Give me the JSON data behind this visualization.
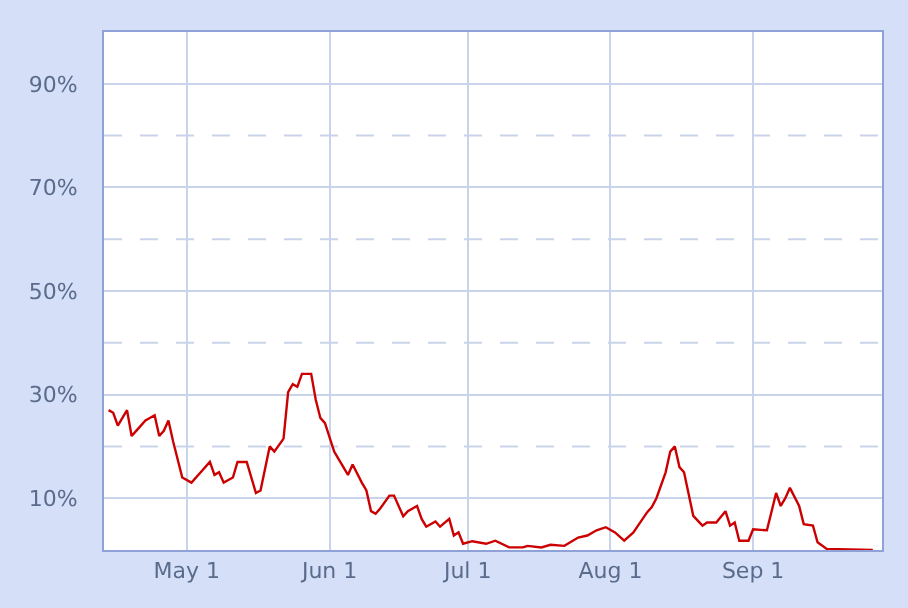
{
  "chart_data": {
    "type": "line",
    "grid": true,
    "line_style": "solid",
    "xlim": [
      "--04-13",
      "--09-29"
    ],
    "xticks": [
      {
        "value": "--05-01",
        "label": "May 1"
      },
      {
        "value": "--06-01",
        "label": "Jun 1"
      },
      {
        "value": "--07-01",
        "label": "Jul 1"
      },
      {
        "value": "--08-01",
        "label": "Aug 1"
      },
      {
        "value": "--09-01",
        "label": "Sep 1"
      }
    ],
    "ylim": [
      0,
      100
    ],
    "yticks": [
      {
        "value": 10,
        "label": "10%"
      },
      {
        "value": 20,
        "label": null
      },
      {
        "value": 30,
        "label": "30%"
      },
      {
        "value": 40,
        "label": null
      },
      {
        "value": 50,
        "label": "50%"
      },
      {
        "value": 60,
        "label": null
      },
      {
        "value": 70,
        "label": "70%"
      },
      {
        "value": 80,
        "label": null
      },
      {
        "value": 90,
        "label": "90%"
      }
    ],
    "x": [
      "--04-14",
      "--04-15",
      "--04-16",
      "--04-18",
      "--04-19",
      "--04-20",
      "--04-22",
      "--04-24",
      "--04-25",
      "--04-26",
      "--04-27",
      "--04-28",
      "--04-30",
      "--05-02",
      "--05-04",
      "--05-06",
      "--05-07",
      "--05-08",
      "--05-09",
      "--05-11",
      "--05-12",
      "--05-14",
      "--05-16",
      "--05-17",
      "--05-19",
      "--05-20",
      "--05-22",
      "--05-23",
      "--05-24",
      "--05-25",
      "--05-26",
      "--05-28",
      "--05-29",
      "--05-30",
      "--05-31",
      "--06-02",
      "--06-03",
      "--06-05",
      "--06-06",
      "--06-08",
      "--06-09",
      "--06-10",
      "--06-11",
      "--06-12",
      "--06-14",
      "--06-15",
      "--06-17",
      "--06-18",
      "--06-20",
      "--06-21",
      "--06-22",
      "--06-24",
      "--06-25",
      "--06-27",
      "--06-28",
      "--06-29",
      "--06-30",
      "--07-02",
      "--07-05",
      "--07-07",
      "--07-10",
      "--07-13",
      "--07-14",
      "--07-17",
      "--07-19",
      "--07-22",
      "--07-25",
      "--07-27",
      "--07-29",
      "--07-31",
      "--08-02",
      "--08-04",
      "--08-06",
      "--08-07",
      "--08-09",
      "--08-10",
      "--08-11",
      "--08-13",
      "--08-14",
      "--08-15",
      "--08-16",
      "--08-17",
      "--08-19",
      "--08-21",
      "--08-22",
      "--08-24",
      "--08-26",
      "--08-27",
      "--08-28",
      "--08-29",
      "--08-31",
      "--09-01",
      "--09-04",
      "--09-06",
      "--09-07",
      "--09-08",
      "--09-09",
      "--09-11",
      "--09-12",
      "--09-14",
      "--09-15",
      "--09-17",
      "--09-27"
    ],
    "series": [
      {
        "color": "#cc0000",
        "values": [
          27,
          26.5,
          24,
          27,
          22,
          23,
          25,
          26,
          22,
          23,
          25,
          21,
          14,
          13,
          15,
          17,
          14.5,
          15,
          13,
          14,
          17,
          17,
          11,
          11.5,
          20,
          19,
          21.5,
          30.5,
          32,
          31.5,
          34,
          34,
          29,
          25.5,
          24.5,
          19,
          17.5,
          14.5,
          16.5,
          13,
          11.5,
          7.5,
          7,
          8,
          10.5,
          10.5,
          6.5,
          7.5,
          8.5,
          6,
          4.5,
          5.5,
          4.5,
          6,
          2.8,
          3.4,
          1.2,
          1.7,
          1.2,
          1.8,
          0.5,
          0.5,
          0.8,
          0.5,
          1,
          0.8,
          2.4,
          2.8,
          3.8,
          4.4,
          3.4,
          1.8,
          3.4,
          4.7,
          7.3,
          8.3,
          10,
          15,
          19,
          20,
          16,
          15,
          6.6,
          4.7,
          5.3,
          5.3,
          7.5,
          4.7,
          5.3,
          1.8,
          1.8,
          4,
          3.8,
          11,
          8.5,
          10,
          12,
          8.5,
          5,
          4.7,
          1.5,
          0.2,
          0
        ]
      }
    ]
  }
}
